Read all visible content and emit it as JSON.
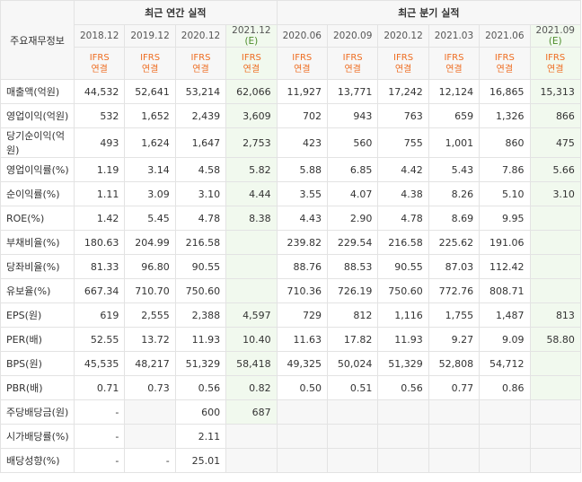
{
  "header": {
    "label_col": "주요재무정보",
    "annual_title": "최근 연간 실적",
    "quarter_title": "최근 분기 실적",
    "gaap": {
      "top": "IFRS",
      "bottom": "연결"
    },
    "annual_periods": [
      {
        "date": "2018.12",
        "est": ""
      },
      {
        "date": "2019.12",
        "est": ""
      },
      {
        "date": "2020.12",
        "est": ""
      },
      {
        "date": "2021.12",
        "est": "(E)"
      }
    ],
    "quarter_periods": [
      {
        "date": "2020.06",
        "est": ""
      },
      {
        "date": "2020.09",
        "est": ""
      },
      {
        "date": "2020.12",
        "est": ""
      },
      {
        "date": "2021.03",
        "est": ""
      },
      {
        "date": "2021.06",
        "est": ""
      },
      {
        "date": "2021.09",
        "est": "(E)"
      }
    ]
  },
  "rows": [
    {
      "label": "매출액(억원)",
      "values": [
        "44,532",
        "52,641",
        "53,214",
        "62,066",
        "11,927",
        "13,771",
        "17,242",
        "12,124",
        "16,865",
        "15,313"
      ]
    },
    {
      "label": "영업이익(억원)",
      "values": [
        "532",
        "1,652",
        "2,439",
        "3,609",
        "702",
        "943",
        "763",
        "659",
        "1,326",
        "866"
      ]
    },
    {
      "label": "당기순이익(억원)",
      "values": [
        "493",
        "1,624",
        "1,647",
        "2,753",
        "423",
        "560",
        "755",
        "1,001",
        "860",
        "475"
      ]
    },
    {
      "label": "영업이익률(%)",
      "values": [
        "1.19",
        "3.14",
        "4.58",
        "5.82",
        "5.88",
        "6.85",
        "4.42",
        "5.43",
        "7.86",
        "5.66"
      ]
    },
    {
      "label": "순이익률(%)",
      "values": [
        "1.11",
        "3.09",
        "3.10",
        "4.44",
        "3.55",
        "4.07",
        "4.38",
        "8.26",
        "5.10",
        "3.10"
      ]
    },
    {
      "label": "ROE(%)",
      "values": [
        "1.42",
        "5.45",
        "4.78",
        "8.38",
        "4.43",
        "2.90",
        "4.78",
        "8.69",
        "9.95",
        ""
      ]
    },
    {
      "label": "부채비율(%)",
      "values": [
        "180.63",
        "204.99",
        "216.58",
        "",
        "239.82",
        "229.54",
        "216.58",
        "225.62",
        "191.06",
        ""
      ]
    },
    {
      "label": "당좌비율(%)",
      "values": [
        "81.33",
        "96.80",
        "90.55",
        "",
        "88.76",
        "88.53",
        "90.55",
        "87.03",
        "112.42",
        ""
      ]
    },
    {
      "label": "유보율(%)",
      "values": [
        "667.34",
        "710.70",
        "750.60",
        "",
        "710.36",
        "726.19",
        "750.60",
        "772.76",
        "808.71",
        ""
      ]
    },
    {
      "label": "EPS(원)",
      "values": [
        "619",
        "2,555",
        "2,388",
        "4,597",
        "729",
        "812",
        "1,116",
        "1,755",
        "1,487",
        "813"
      ]
    },
    {
      "label": "PER(배)",
      "values": [
        "52.55",
        "13.72",
        "11.93",
        "10.40",
        "11.63",
        "17.82",
        "11.93",
        "9.27",
        "9.09",
        "58.80"
      ]
    },
    {
      "label": "BPS(원)",
      "values": [
        "45,535",
        "48,217",
        "51,329",
        "58,418",
        "49,325",
        "50,024",
        "51,329",
        "52,808",
        "54,712",
        ""
      ]
    },
    {
      "label": "PBR(배)",
      "values": [
        "0.71",
        "0.73",
        "0.56",
        "0.82",
        "0.50",
        "0.51",
        "0.56",
        "0.77",
        "0.86",
        ""
      ]
    },
    {
      "label": "주당배당금(원)",
      "values": [
        "-",
        "",
        "600",
        "687",
        "",
        "",
        "",
        "",
        "",
        ""
      ]
    },
    {
      "label": "시가배당률(%)",
      "values": [
        "-",
        "",
        "2.11",
        "",
        "",
        "",
        "",
        "",
        "",
        ""
      ]
    },
    {
      "label": "배당성향(%)",
      "values": [
        "-",
        "-",
        "25.01",
        "",
        "",
        "",
        "",
        "",
        "",
        ""
      ]
    }
  ],
  "colors": {
    "estimate_bg": "#f1f9ee",
    "estimate_text": "#4c8c2a",
    "ifrs_text": "#ee6d22",
    "header_bg": "#f7f7f7",
    "empty_bg": "#f7f7f7"
  }
}
